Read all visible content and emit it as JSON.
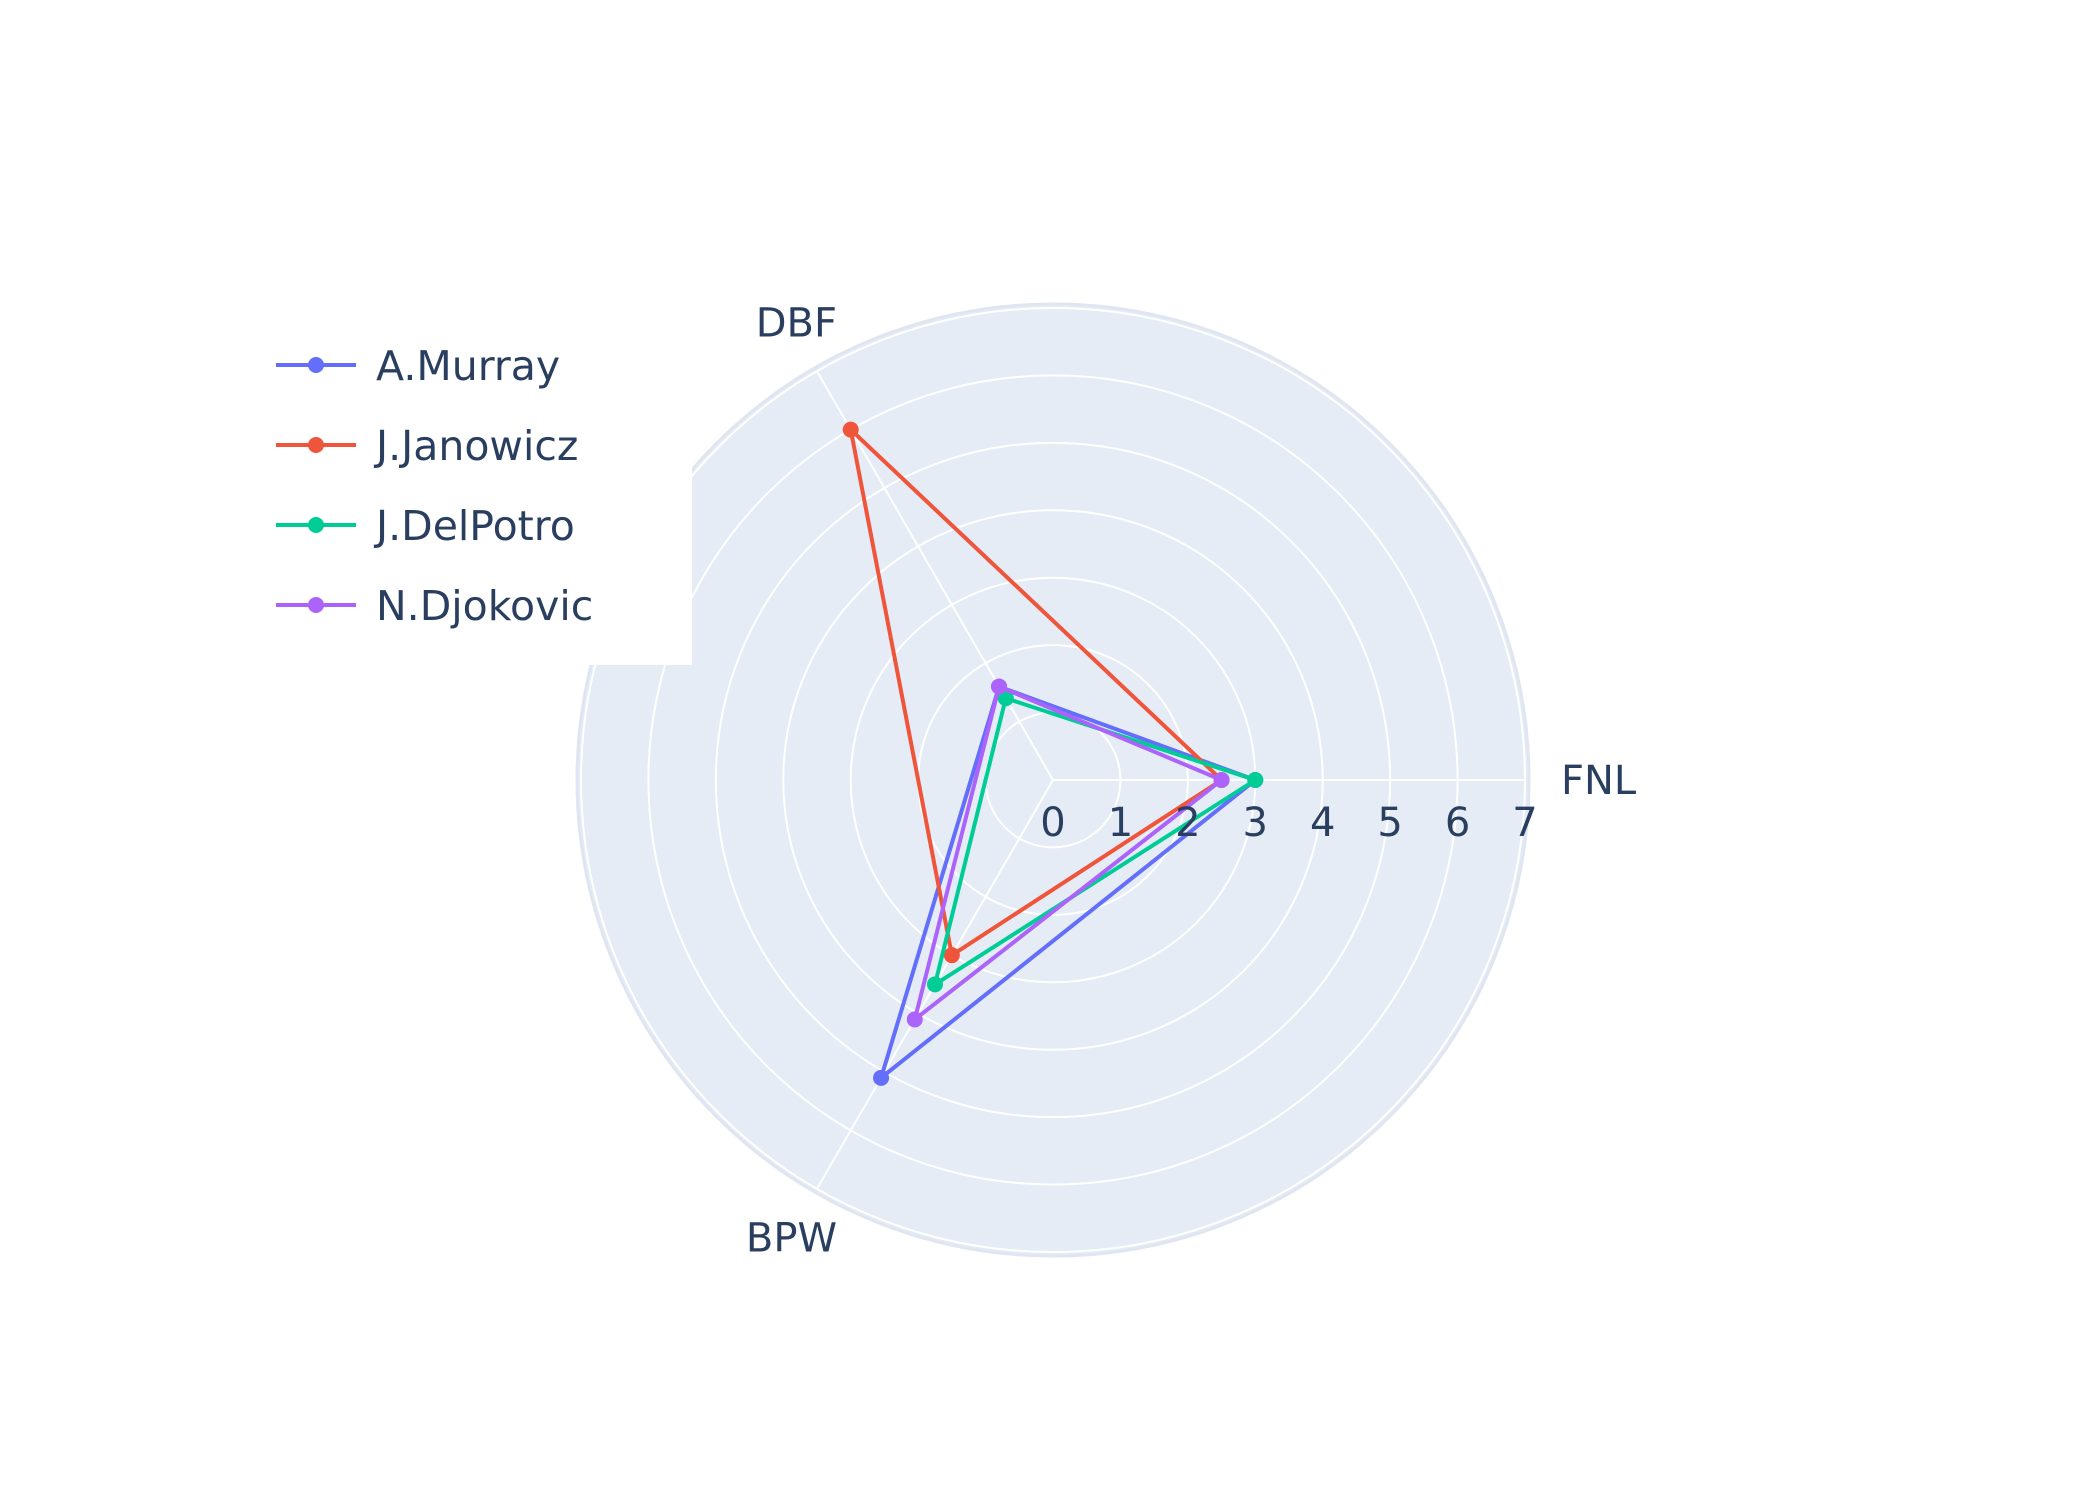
{
  "chart_data": {
    "type": "radar",
    "title": "",
    "categories": [
      "FNL",
      "DBF",
      "BPW"
    ],
    "radial_range": [
      0,
      7
    ],
    "radial_ticks": [
      "0",
      "1",
      "2",
      "3",
      "4",
      "5",
      "6",
      "7"
    ],
    "grid": true,
    "legend_position": "top-left",
    "series": [
      {
        "name": "A.Murray",
        "color": "#636efa",
        "values": [
          3.0,
          1.6,
          5.1
        ]
      },
      {
        "name": "J.Janowicz",
        "color": "#ef553b",
        "values": [
          2.5,
          6.0,
          3.0
        ]
      },
      {
        "name": "J.DelPotro",
        "color": "#00cc96",
        "values": [
          3.0,
          1.4,
          3.5
        ]
      },
      {
        "name": "N.Djokovic",
        "color": "#ab63fa",
        "values": [
          2.5,
          1.6,
          4.1
        ]
      }
    ]
  },
  "colors": {
    "plot_background": "#e5ecf6",
    "grid": "#ffffff",
    "text": "#2a3f5f"
  }
}
